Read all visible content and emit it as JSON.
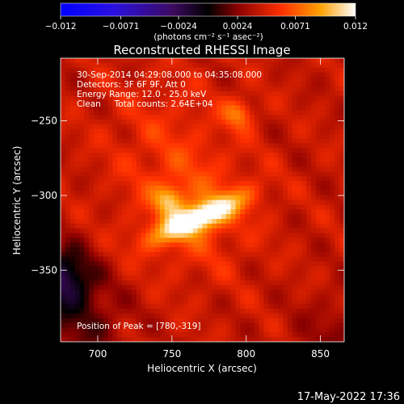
{
  "chart_data": {
    "type": "heatmap",
    "title": "Reconstructed RHESSI Image",
    "xlabel": "Heliocentric X (arcsec)",
    "ylabel": "Heliocentric Y (arcsec)",
    "xlim": [
      675,
      866
    ],
    "ylim": [
      -398,
      -208
    ],
    "x_ticks": [
      700,
      750,
      800,
      850
    ],
    "x_tick_labels": [
      "700",
      "750",
      "800",
      "850"
    ],
    "y_ticks": [
      -250,
      -300,
      -350
    ],
    "y_tick_labels": [
      "−250",
      "−300",
      "−350"
    ],
    "colorbar": {
      "min": -0.012,
      "max": 0.012,
      "ticks": [
        -0.012,
        -0.0071,
        -0.0024,
        0.0024,
        0.0071,
        0.012
      ],
      "tick_labels": [
        "−0.012",
        "−0.0071",
        "−0.0024",
        "0.0024",
        "0.0071",
        "0.012"
      ],
      "label": "(photons cm⁻² s⁻¹ asec⁻²)",
      "colormap": "hot-with-negative-blue"
    },
    "annotations": [
      "30-Sep-2014 04:29:08.000 to 04:35:08.000",
      "Detectors: 3F 6F 9F, Att 0",
      "Energy Range: 12.0 - 25.0 keV",
      "Clean     Total counts: 2.64E+04"
    ],
    "peak_label": "Position of Peak = [780,-319]",
    "sources": [
      {
        "x": 768,
        "y": -315,
        "intensity": 0.012,
        "shape": "elongated-ridge"
      },
      {
        "x": 750,
        "y": -305,
        "intensity": 0.0095,
        "shape": "compact"
      },
      {
        "x": 795,
        "y": -245,
        "intensity": 0.0065,
        "shape": "compact"
      }
    ]
  },
  "footer": {
    "timestamp": "17-May-2022 17:36"
  }
}
